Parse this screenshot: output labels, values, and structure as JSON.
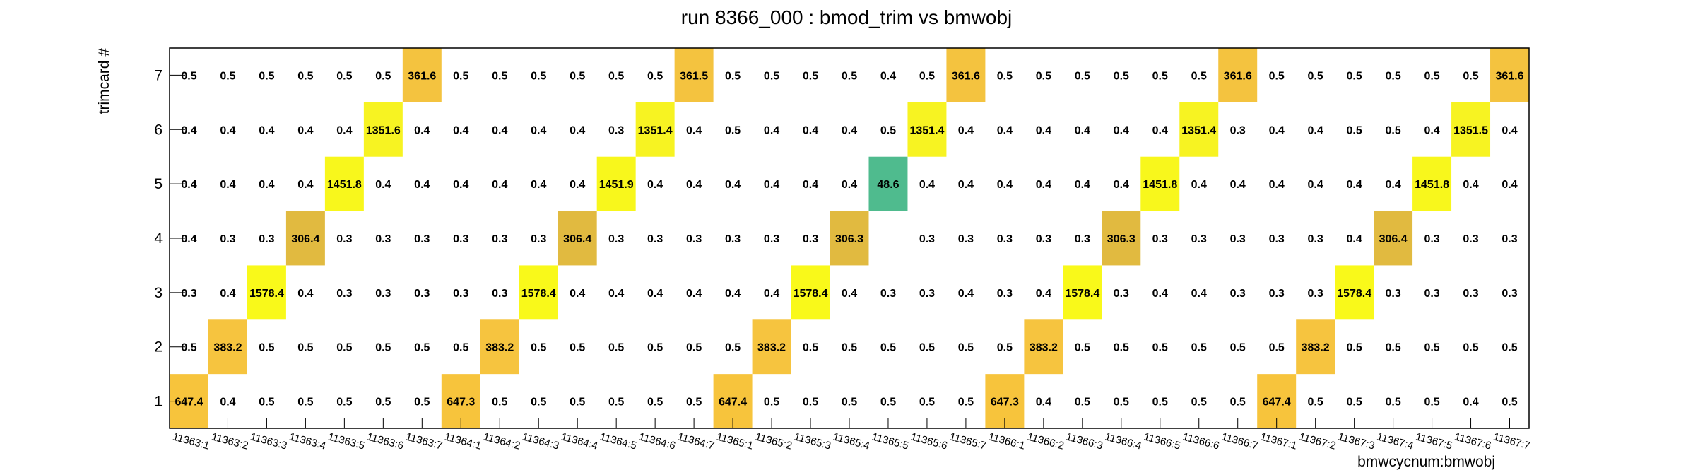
{
  "chart_data": {
    "type": "heatmap",
    "title": "run 8366_000 : bmod_trim vs bmwobj",
    "xlabel": "bmwcycnum:bmwobj",
    "ylabel": "trimcard #",
    "x_categories": [
      "11363:1",
      "11363:2",
      "11363:3",
      "11363:4",
      "11363:5",
      "11363:6",
      "11363:7",
      "11364:1",
      "11364:2",
      "11364:3",
      "11364:4",
      "11364:5",
      "11364:6",
      "11364:7",
      "11365:1",
      "11365:2",
      "11365:3",
      "11365:4",
      "11365:5",
      "11365:6",
      "11365:7",
      "11366:1",
      "11366:2",
      "11366:3",
      "11366:4",
      "11366:5",
      "11366:6",
      "11366:7",
      "11367:1",
      "11367:2",
      "11367:3",
      "11367:4",
      "11367:5",
      "11367:6",
      "11367:7"
    ],
    "y_categories": [
      "1",
      "2",
      "3",
      "4",
      "5",
      "6",
      "7"
    ],
    "rows": [
      {
        "y": "1",
        "values": [
          "647.4",
          "0.4",
          "0.5",
          "0.5",
          "0.5",
          "0.5",
          "0.5",
          "647.3",
          "0.5",
          "0.5",
          "0.5",
          "0.5",
          "0.5",
          "0.5",
          "647.4",
          "0.5",
          "0.5",
          "0.5",
          "0.5",
          "0.5",
          "0.5",
          "647.3",
          "0.4",
          "0.5",
          "0.5",
          "0.5",
          "0.5",
          "0.5",
          "647.4",
          "0.5",
          "0.5",
          "0.5",
          "0.5",
          "0.4",
          "0.5"
        ]
      },
      {
        "y": "2",
        "values": [
          "0.5",
          "383.2",
          "0.5",
          "0.5",
          "0.5",
          "0.5",
          "0.5",
          "0.5",
          "383.2",
          "0.5",
          "0.5",
          "0.5",
          "0.5",
          "0.5",
          "0.5",
          "383.2",
          "0.5",
          "0.5",
          "0.5",
          "0.5",
          "0.5",
          "0.5",
          "383.2",
          "0.5",
          "0.5",
          "0.5",
          "0.5",
          "0.5",
          "0.5",
          "383.2",
          "0.5",
          "0.5",
          "0.5",
          "0.5",
          "0.5"
        ]
      },
      {
        "y": "3",
        "values": [
          "0.3",
          "0.4",
          "1578.4",
          "0.4",
          "0.3",
          "0.3",
          "0.3",
          "0.3",
          "0.3",
          "1578.4",
          "0.4",
          "0.4",
          "0.4",
          "0.4",
          "0.4",
          "0.4",
          "1578.4",
          "0.4",
          "0.3",
          "0.3",
          "0.4",
          "0.3",
          "0.4",
          "1578.4",
          "0.3",
          "0.4",
          "0.4",
          "0.3",
          "0.3",
          "0.3",
          "1578.4",
          "0.3",
          "0.3",
          "0.3",
          "0.3"
        ]
      },
      {
        "y": "4",
        "values": [
          "0.4",
          "0.3",
          "0.3",
          "306.4",
          "0.3",
          "0.3",
          "0.3",
          "0.3",
          "0.3",
          "0.3",
          "306.4",
          "0.3",
          "0.3",
          "0.3",
          "0.3",
          "0.3",
          "0.3",
          "306.3",
          "",
          "0.3",
          "0.3",
          "0.3",
          "0.3",
          "0.3",
          "306.3",
          "0.3",
          "0.3",
          "0.3",
          "0.3",
          "0.3",
          "0.4",
          "306.4",
          "0.3",
          "0.3",
          "0.3"
        ]
      },
      {
        "y": "5",
        "values": [
          "0.4",
          "0.4",
          "0.4",
          "0.4",
          "1451.8",
          "0.4",
          "0.4",
          "0.4",
          "0.4",
          "0.4",
          "0.4",
          "1451.9",
          "0.4",
          "0.4",
          "0.4",
          "0.4",
          "0.4",
          "0.4",
          "48.6",
          "0.4",
          "0.4",
          "0.4",
          "0.4",
          "0.4",
          "0.4",
          "1451.8",
          "0.4",
          "0.4",
          "0.4",
          "0.4",
          "0.4",
          "0.4",
          "1451.8",
          "0.4",
          "0.4"
        ]
      },
      {
        "y": "6",
        "values": [
          "0.4",
          "0.4",
          "0.4",
          "0.4",
          "0.4",
          "1351.6",
          "0.4",
          "0.4",
          "0.4",
          "0.4",
          "0.4",
          "0.3",
          "1351.4",
          "0.4",
          "0.5",
          "0.4",
          "0.4",
          "0.4",
          "0.5",
          "1351.4",
          "0.4",
          "0.4",
          "0.4",
          "0.4",
          "0.4",
          "0.4",
          "1351.4",
          "0.3",
          "0.4",
          "0.4",
          "0.5",
          "0.5",
          "0.4",
          "1351.5",
          "0.4"
        ]
      },
      {
        "y": "7",
        "values": [
          "0.5",
          "0.5",
          "0.5",
          "0.5",
          "0.5",
          "0.5",
          "361.6",
          "0.5",
          "0.5",
          "0.5",
          "0.5",
          "0.5",
          "0.5",
          "361.5",
          "0.5",
          "0.5",
          "0.5",
          "0.5",
          "0.4",
          "0.5",
          "361.6",
          "0.5",
          "0.5",
          "0.5",
          "0.5",
          "0.5",
          "0.5",
          "361.6",
          "0.5",
          "0.5",
          "0.5",
          "0.5",
          "0.5",
          "0.5",
          "361.6"
        ]
      }
    ],
    "colors": {
      "level_1578": "#f9f91a",
      "level_1451": "#f8f71c",
      "level_1351": "#f7f322",
      "level_647": "#f7c43c",
      "level_383": "#f6c43f",
      "level_361": "#f4c33f",
      "level_306": "#e1ba40",
      "level_48": "#4fbb8e",
      "frame": "#000000"
    }
  }
}
